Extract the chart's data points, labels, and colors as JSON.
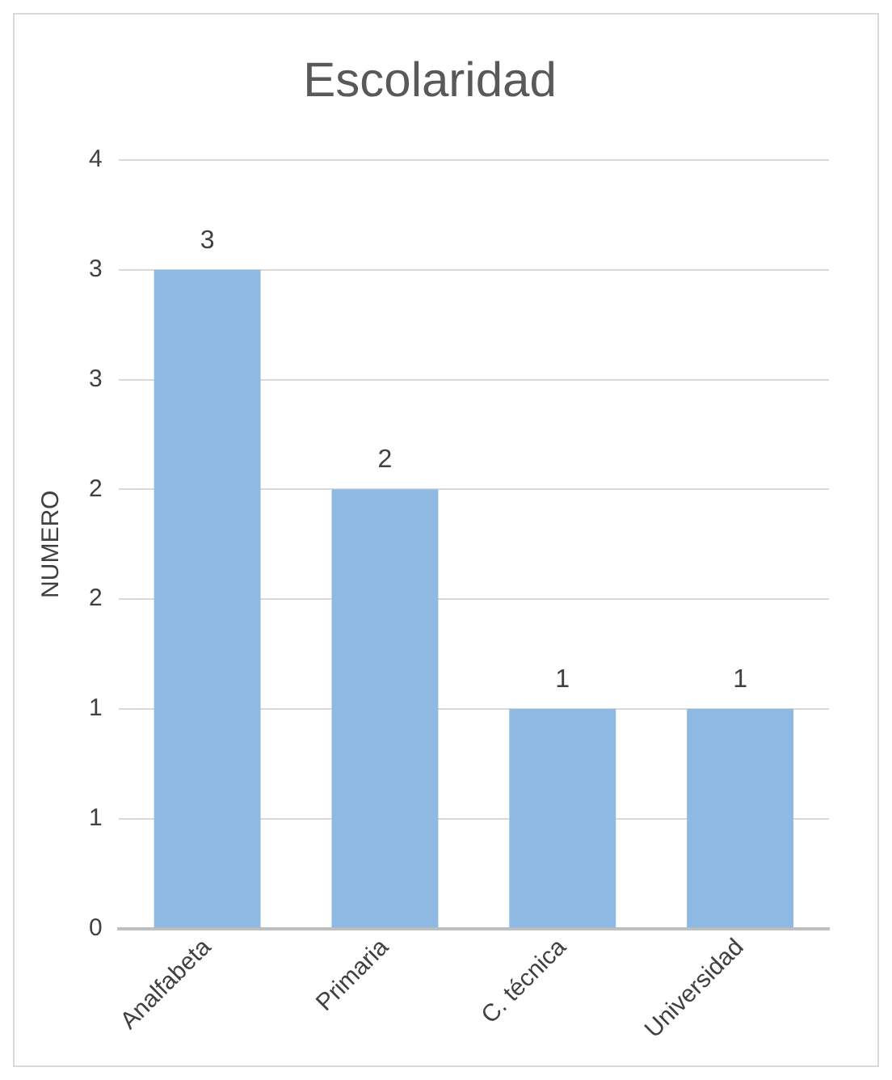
{
  "chart_data": {
    "type": "bar",
    "title": "Escolaridad",
    "ylabel": "NUMERO",
    "categories": [
      "Analfabeta",
      "Primaria",
      "C. técnica",
      "Universidad"
    ],
    "values": [
      3,
      2,
      1,
      1
    ],
    "color": "#8db9e2",
    "ylim": [
      0,
      3.5
    ],
    "yticks": [
      {
        "value": 0,
        "label": "0"
      },
      {
        "value": 0.5,
        "label": "1"
      },
      {
        "value": 1,
        "label": "1"
      },
      {
        "value": 1.5,
        "label": "2"
      },
      {
        "value": 2,
        "label": "2"
      },
      {
        "value": 2.5,
        "label": "3"
      },
      {
        "value": 3,
        "label": "3"
      },
      {
        "value": 3.5,
        "label": "4"
      }
    ],
    "grid": "y",
    "data_labels": true
  }
}
